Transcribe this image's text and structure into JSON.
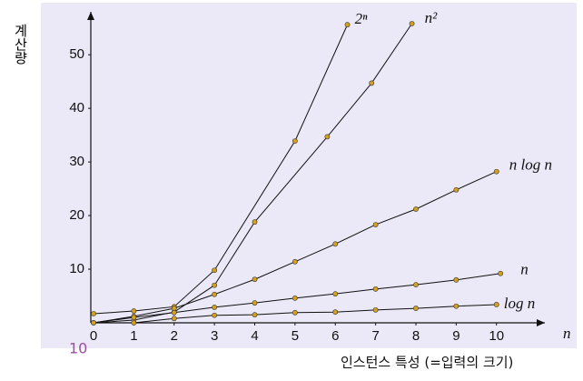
{
  "chart_data": {
    "type": "line",
    "y_label": "계산량",
    "x_label": "n",
    "caption": "인스턴스 특성 (=입력의 크기)",
    "page_number": "10",
    "xlim": [
      0,
      11.2
    ],
    "ylim": [
      0,
      58
    ],
    "xticks": [
      0,
      1,
      2,
      3,
      4,
      5,
      6,
      7,
      8,
      9,
      10
    ],
    "yticks": [
      10,
      20,
      30,
      40,
      50
    ],
    "series": [
      {
        "name": "2ⁿ",
        "color": "#111111",
        "x": [
          0,
          1,
          2,
          3,
          5,
          6.3
        ],
        "values": [
          1.7,
          2.2,
          3,
          9.8,
          33.9,
          55.6
        ]
      },
      {
        "name": "n²",
        "color": "#111111",
        "x": [
          0,
          1,
          2,
          3,
          4,
          5.8,
          6.9,
          7.9
        ],
        "values": [
          0,
          0.5,
          2,
          7,
          18.8,
          34.7,
          44.7,
          55.8
        ]
      },
      {
        "name": "n log n",
        "color": "#111111",
        "x": [
          0,
          1,
          2,
          3,
          4,
          5,
          6,
          7,
          8,
          9,
          10
        ],
        "values": [
          0,
          1.2,
          2.7,
          5.3,
          8.1,
          11.4,
          14.7,
          18.3,
          21.2,
          24.8,
          28.2
        ]
      },
      {
        "name": "n",
        "color": "#111111",
        "x": [
          0,
          1,
          2,
          3,
          4,
          5,
          6,
          7,
          8,
          9,
          10.1
        ],
        "values": [
          0,
          1,
          1.9,
          2.9,
          3.7,
          4.6,
          5.4,
          6.3,
          7.1,
          8,
          9.2
        ]
      },
      {
        "name": "log n",
        "color": "#111111",
        "x": [
          1,
          2,
          3,
          4,
          5,
          6,
          7,
          8,
          9,
          10
        ],
        "values": [
          0,
          0.8,
          1.4,
          1.5,
          1.9,
          2.0,
          2.4,
          2.7,
          3.1,
          3.4
        ]
      }
    ],
    "marker_color": "#d4a020",
    "background": "#ebe8f8"
  }
}
